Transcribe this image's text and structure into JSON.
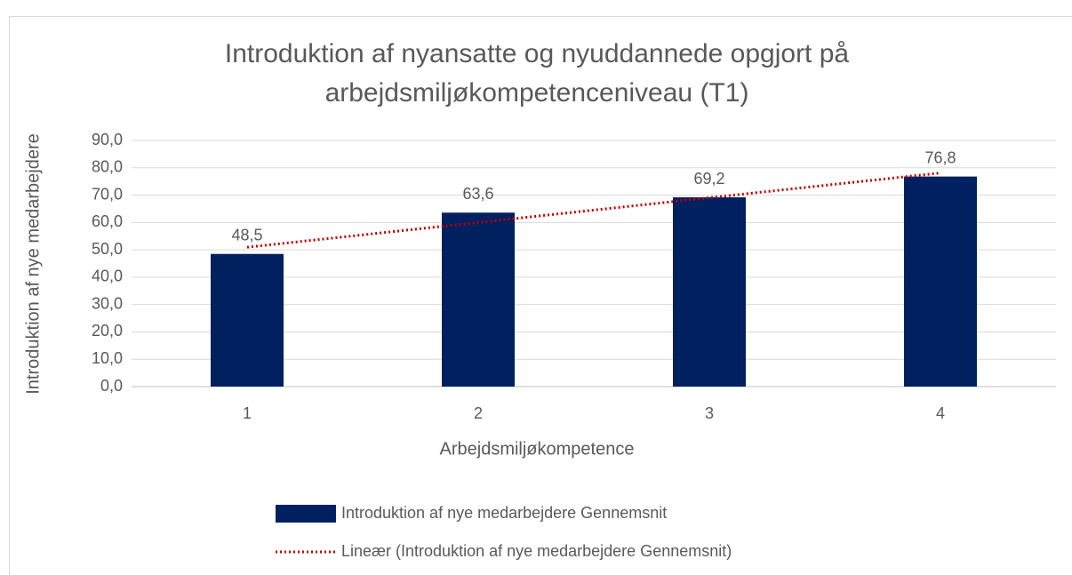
{
  "chart_data": {
    "type": "bar",
    "title_lines": [
      "Introduktion af nyansatte og nyuddannede opgjort på",
      "arbejdsmiljøkompetenceniveau (T1)"
    ],
    "x_label": "Arbejdsmiljøkompetence",
    "y_label": "Introduktion af nye medarbejdere",
    "categories": [
      "1",
      "2",
      "3",
      "4"
    ],
    "series": [
      {
        "name": "Introduktion af nye medarbejdere Gennemsnit",
        "color": "#002060",
        "values": [
          48.5,
          63.6,
          69.2,
          76.8
        ],
        "value_labels": [
          "48,5",
          "63,6",
          "69,2",
          "76,8"
        ]
      }
    ],
    "trendline": {
      "name": "Lineær (Introduktion af nye medarbejdere Gennemsnit)",
      "type": "linear",
      "color": "#c00000"
    },
    "ylim": [
      0,
      90
    ],
    "yticks": [
      {
        "value": 0,
        "label": "0,0"
      },
      {
        "value": 10,
        "label": "10,0"
      },
      {
        "value": 20,
        "label": "20,0"
      },
      {
        "value": 30,
        "label": "30,0"
      },
      {
        "value": 40,
        "label": "40,0"
      },
      {
        "value": 50,
        "label": "50,0"
      },
      {
        "value": 60,
        "label": "60,0"
      },
      {
        "value": 70,
        "label": "70,0"
      },
      {
        "value": 80,
        "label": "80,0"
      },
      {
        "value": 90,
        "label": "90,0"
      }
    ],
    "grid": true,
    "legend": "bottom"
  }
}
